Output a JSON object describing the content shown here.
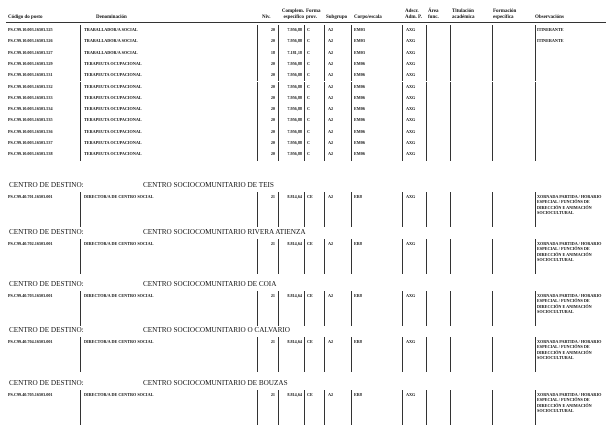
{
  "headers": {
    "code": "Código do posto",
    "denom": "Denominación",
    "niv": "Niv.",
    "complem": "Complem. específico",
    "forma": "Forma prov.",
    "subgrupo": "Subgrupo",
    "corpo": "Corpo/escala",
    "adscr": "Adscr. Adm. P.",
    "area": "Área func.",
    "titulacion": "Titulación académica",
    "formacion": "Formación específica",
    "observ": "Observacións"
  },
  "rows": [
    {
      "code": "PS.C99.10.003.16503.525",
      "denom": "TRABALLADOR/A SOCIAL",
      "niv": "20",
      "complem": "7.956,88",
      "forma": "C",
      "subgrupo": "A2",
      "corpo": "EM03",
      "adscr": "AXG",
      "observ": "ITINERANTE"
    },
    {
      "code": "PS.C99.10.003.16503.526",
      "denom": "TRABALLADOR/A SOCIAL",
      "niv": "20",
      "complem": "7.956,88",
      "forma": "C",
      "subgrupo": "A2",
      "corpo": "EM03",
      "adscr": "AXG",
      "observ": "ITINERANTE"
    },
    {
      "code": "PS.C99.10.003.16503.527",
      "denom": "TRABALLADOR/A SOCIAL",
      "niv": "18",
      "complem": "7.181,18",
      "forma": "C",
      "subgrupo": "A2",
      "corpo": "EM03",
      "adscr": "AXG",
      "observ": ""
    },
    {
      "code": "PS.C99.10.003.16503.529",
      "denom": "TERAPEUTA OCUPACIONAL",
      "niv": "20",
      "complem": "7.956,88",
      "forma": "C",
      "subgrupo": "A2",
      "corpo": "EM06",
      "adscr": "AXG",
      "observ": ""
    },
    {
      "code": "PS.C99.10.003.16503.531",
      "denom": "TERAPEUTA OCUPACIONAL",
      "niv": "20",
      "complem": "7.956,88",
      "forma": "C",
      "subgrupo": "A2",
      "corpo": "EM06",
      "adscr": "AXG",
      "observ": ""
    },
    {
      "code": "PS.C99.10.003.16503.532",
      "denom": "TERAPEUTA OCUPACIONAL",
      "niv": "20",
      "complem": "7.956,88",
      "forma": "C",
      "subgrupo": "A2",
      "corpo": "EM06",
      "adscr": "AXG",
      "observ": ""
    },
    {
      "code": "PS.C99.10.003.16503.533",
      "denom": "TERAPEUTA OCUPACIONAL",
      "niv": "20",
      "complem": "7.956,88",
      "forma": "C",
      "subgrupo": "A2",
      "corpo": "EM06",
      "adscr": "AXG",
      "observ": ""
    },
    {
      "code": "PS.C99.10.003.16503.534",
      "denom": "TERAPEUTA OCUPACIONAL",
      "niv": "20",
      "complem": "7.956,88",
      "forma": "C",
      "subgrupo": "A2",
      "corpo": "EM06",
      "adscr": "AXG",
      "observ": ""
    },
    {
      "code": "PS.C99.10.003.16503.535",
      "denom": "TERAPEUTA OCUPACIONAL",
      "niv": "20",
      "complem": "7.956,88",
      "forma": "C",
      "subgrupo": "A2",
      "corpo": "EM06",
      "adscr": "AXG",
      "observ": ""
    },
    {
      "code": "PS.C99.10.003.16503.536",
      "denom": "TERAPEUTA OCUPACIONAL",
      "niv": "20",
      "complem": "7.956,88",
      "forma": "C",
      "subgrupo": "A2",
      "corpo": "EM06",
      "adscr": "AXG",
      "observ": ""
    },
    {
      "code": "PS.C99.10.003.16503.537",
      "denom": "TERAPEUTA OCUPACIONAL",
      "niv": "20",
      "complem": "7.956,88",
      "forma": "C",
      "subgrupo": "A2",
      "corpo": "EM06",
      "adscr": "AXG",
      "observ": ""
    },
    {
      "code": "PS.C99.10.003.16503.538",
      "denom": "TERAPEUTA OCUPACIONAL",
      "niv": "20",
      "complem": "7.956,88",
      "forma": "C",
      "subgrupo": "A2",
      "corpo": "EM06",
      "adscr": "AXG",
      "observ": ""
    }
  ],
  "sections": [
    {
      "label": "CENTRO DE DESTINO:",
      "name": "CENTRO SOCIOCOMUNITARIO DE TEIS",
      "row": {
        "code": "PS.C99.40.701.16503.001",
        "denom": "DIRECTOR/A DE CENTRO SOCIAL",
        "niv": "21",
        "complem": "8.814,64",
        "forma": "CE",
        "subgrupo": "A2",
        "corpo": "ER8",
        "adscr": "AXG",
        "observ": "XORNADA PARTIDA / HORARIO ESPECIAL / FUNCIÓNS DE DIRECCIÓN E ANIMACIÓN SOCIOCULTURAL"
      }
    },
    {
      "label": "CENTRO DE DESTINO:",
      "name": "CENTRO SOCIOCOMUNITARIO RIVERA ATIENZA",
      "row": {
        "code": "PS.C99.40.702.16503.001",
        "denom": "DIRECTOR/A DE CENTRO SOCIAL",
        "niv": "21",
        "complem": "8.814,64",
        "forma": "CE",
        "subgrupo": "A2",
        "corpo": "ER8",
        "adscr": "AXG",
        "observ": "XORNADA PARTIDA / HORARIO ESPECIAL / FUNCIÓNS DE DIRECCIÓN E ANIMACIÓN SOCIOCULTURAL"
      }
    },
    {
      "label": "CENTRO DE DESTINO:",
      "name": "CENTRO SOCIOCOMUNITARIO DE COIA",
      "row": {
        "code": "PS.C99.40.703.16503.001",
        "denom": "DIRECTOR/A DE CENTRO SOCIAL",
        "niv": "21",
        "complem": "8.814,64",
        "forma": "CE",
        "subgrupo": "A2",
        "corpo": "ER8",
        "adscr": "AXG",
        "observ": "XORNADA PARTIDA / HORARIO ESPECIAL / FUNCIÓNS DE DIRECCIÓN E ANIMACIÓN SOCIOCULTURAL"
      }
    },
    {
      "label": "CENTRO DE DESTINO:",
      "name": "CENTRO SOCIOCOMUNITARIO O CALVARIO",
      "row": {
        "code": "PS.C99.40.704.16503.001",
        "denom": "DIRECTOR/A DE CENTRO SOCIAL",
        "niv": "21",
        "complem": "8.814,64",
        "forma": "CE",
        "subgrupo": "A2",
        "corpo": "ER8",
        "adscr": "AXG",
        "observ": "XORNADA PARTIDA / HORARIO ESPECIAL / FUNCIÓNS DE DIRECCIÓN E ANIMACIÓN SOCIOCULTURAL"
      }
    },
    {
      "label": "CENTRO DE DESTINO:",
      "name": "CENTRO SOCIOCOMUNITARIO DE BOUZAS",
      "row": {
        "code": "PS.C99.40.705.16503.001",
        "denom": "DIRECTOR/A DE CENTRO SOCIAL",
        "niv": "21",
        "complem": "8.814,64",
        "forma": "CE",
        "subgrupo": "A2",
        "corpo": "ER8",
        "adscr": "AXG",
        "observ": "XORNADA PARTIDA / HORARIO ESPECIAL / FUNCIÓNS DE DIRECCIÓN E ANIMACIÓN SOCIOCULTURAL"
      }
    }
  ]
}
